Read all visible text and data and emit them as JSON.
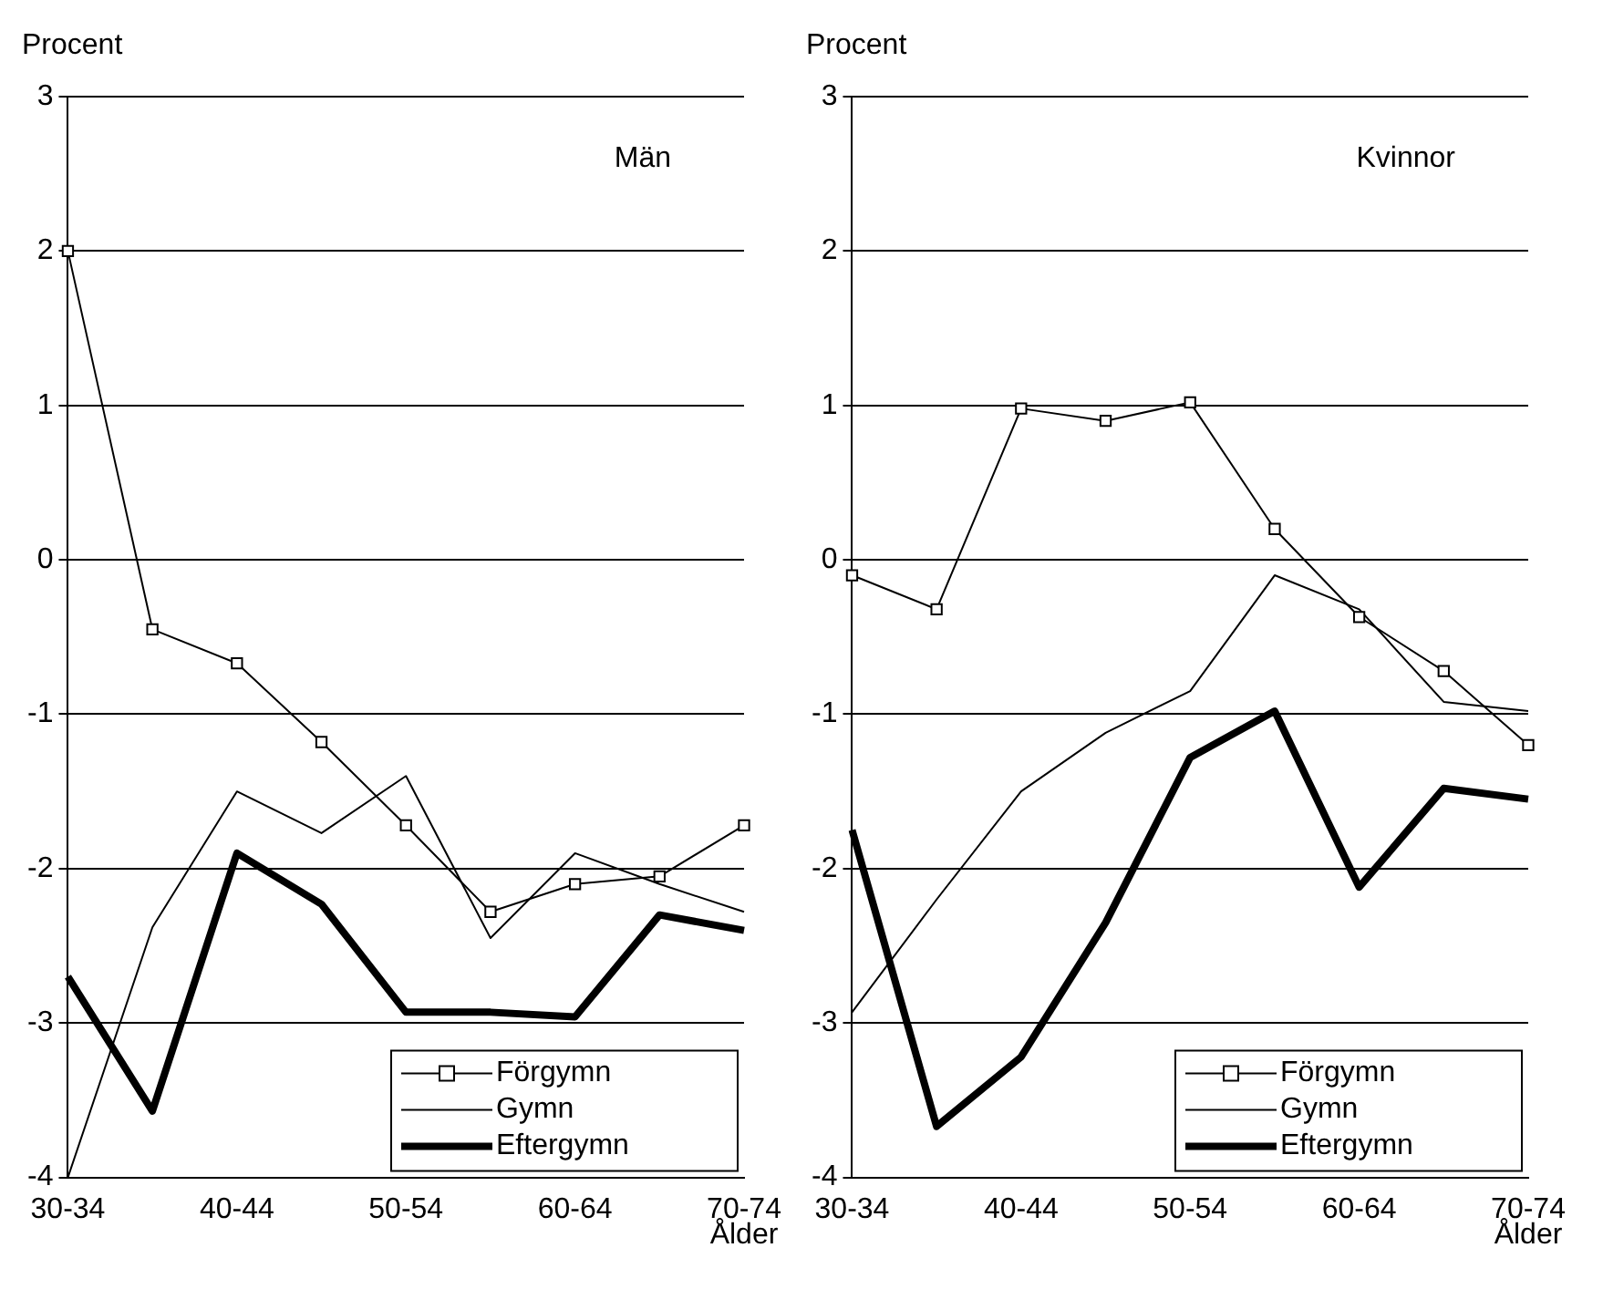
{
  "chart_data": [
    {
      "type": "line",
      "ylabel": "Procent",
      "xlabel": "Ålder",
      "annotations": [
        "Män"
      ],
      "categories": [
        "30-34",
        null,
        "40-44",
        null,
        "50-54",
        null,
        "60-64",
        null,
        "70-74"
      ],
      "ylim": [
        -4,
        3
      ],
      "yticks": [
        -4,
        -3,
        -2,
        -1,
        0,
        1,
        2,
        3
      ],
      "grid": "y",
      "legend": "bottom right",
      "series": [
        {
          "name": "Förgymn",
          "color": "#000000",
          "marker": "square",
          "values": [
            2.0,
            -0.45,
            -0.67,
            -1.18,
            -1.72,
            -2.28,
            -2.1,
            -2.05,
            -1.72
          ]
        },
        {
          "name": "Gymn",
          "color": "#000000",
          "marker": "none",
          "values": [
            -4.0,
            -2.38,
            -1.5,
            -1.77,
            -1.4,
            -2.45,
            -1.9,
            -2.1,
            -2.28
          ]
        },
        {
          "name": "Eftergymn",
          "color": "#000000",
          "marker": "none",
          "values": [
            -2.7,
            -3.57,
            -1.9,
            -2.23,
            -2.93,
            -2.93,
            -2.96,
            -2.3,
            -2.4
          ]
        }
      ]
    },
    {
      "type": "line",
      "ylabel": "Procent",
      "xlabel": "Ålder",
      "annotations": [
        "Kvinnor"
      ],
      "categories": [
        "30-34",
        null,
        "40-44",
        null,
        "50-54",
        null,
        "60-64",
        null,
        "70-74"
      ],
      "ylim": [
        -4,
        3
      ],
      "yticks": [
        -4,
        -3,
        -2,
        -1,
        0,
        1,
        2,
        3
      ],
      "grid": "y",
      "legend": "bottom right",
      "series": [
        {
          "name": "Förgymn",
          "color": "#000000",
          "marker": "square",
          "values": [
            -0.1,
            -0.32,
            0.98,
            0.9,
            1.02,
            0.2,
            -0.37,
            -0.72,
            -1.2
          ]
        },
        {
          "name": "Gymn",
          "color": "#000000",
          "marker": "none",
          "values": [
            -2.93,
            -2.2,
            -1.5,
            -1.12,
            -0.85,
            -0.1,
            -0.32,
            -0.92,
            -0.98
          ]
        },
        {
          "name": "Eftergymn",
          "color": "#000000",
          "marker": "none",
          "values": [
            -1.75,
            -3.67,
            -3.22,
            -2.35,
            -1.28,
            -0.98,
            -2.12,
            -1.48,
            -1.55
          ]
        }
      ]
    }
  ]
}
